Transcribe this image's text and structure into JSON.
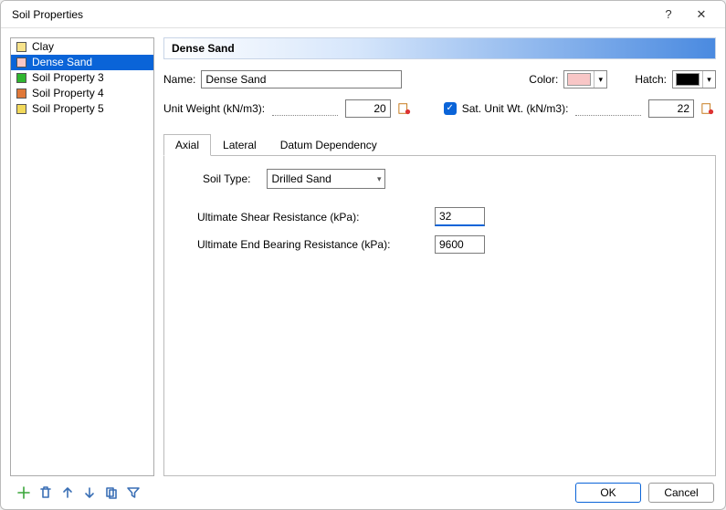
{
  "window": {
    "title": "Soil Properties",
    "help": "?",
    "close": "✕"
  },
  "sidebar": {
    "items": [
      {
        "label": "Clay",
        "swatch": "#f7e38b",
        "selected": false
      },
      {
        "label": "Dense Sand",
        "swatch": "#f8c6c6",
        "selected": true
      },
      {
        "label": "Soil Property 3",
        "swatch": "#2fb62f",
        "selected": false
      },
      {
        "label": "Soil Property 4",
        "swatch": "#e07838",
        "selected": false
      },
      {
        "label": "Soil Property 5",
        "swatch": "#f2d95a",
        "selected": false
      }
    ]
  },
  "banner": {
    "title": "Dense Sand"
  },
  "form": {
    "name_label": "Name:",
    "name_value": "Dense Sand",
    "color_label": "Color:",
    "color_value": "#f8c6c6",
    "hatch_label": "Hatch:",
    "hatch_value": "#000000",
    "unit_weight_label": "Unit Weight (kN/m3):",
    "unit_weight_value": "20",
    "sat_checked": true,
    "sat_label": "Sat. Unit Wt. (kN/m3):",
    "sat_value": "22"
  },
  "tabs": {
    "items": [
      "Axial",
      "Lateral",
      "Datum Dependency"
    ],
    "active": 0
  },
  "axial": {
    "soil_type_label": "Soil Type:",
    "soil_type_value": "Drilled Sand",
    "fields": [
      {
        "label": "Ultimate Shear Resistance (kPa):",
        "value": "32",
        "highlight": true
      },
      {
        "label": "Ultimate End Bearing Resistance (kPa):",
        "value": "9600",
        "highlight": false
      }
    ]
  },
  "toolbar": {
    "icons": [
      {
        "name": "add-icon",
        "glyph": "plus",
        "color": "#3aa63a"
      },
      {
        "name": "delete-icon",
        "glyph": "trash",
        "color": "#3a6fb5"
      },
      {
        "name": "move-up-icon",
        "glyph": "arrow-up",
        "color": "#3a6fb5"
      },
      {
        "name": "move-down-icon",
        "glyph": "arrow-down",
        "color": "#3a6fb5"
      },
      {
        "name": "copy-icon",
        "glyph": "copy",
        "color": "#3a6fb5"
      },
      {
        "name": "filter-icon",
        "glyph": "funnel",
        "color": "#3a6fb5"
      }
    ]
  },
  "buttons": {
    "ok": "OK",
    "cancel": "Cancel"
  },
  "style": {
    "select_bg": "#0a64d8"
  }
}
